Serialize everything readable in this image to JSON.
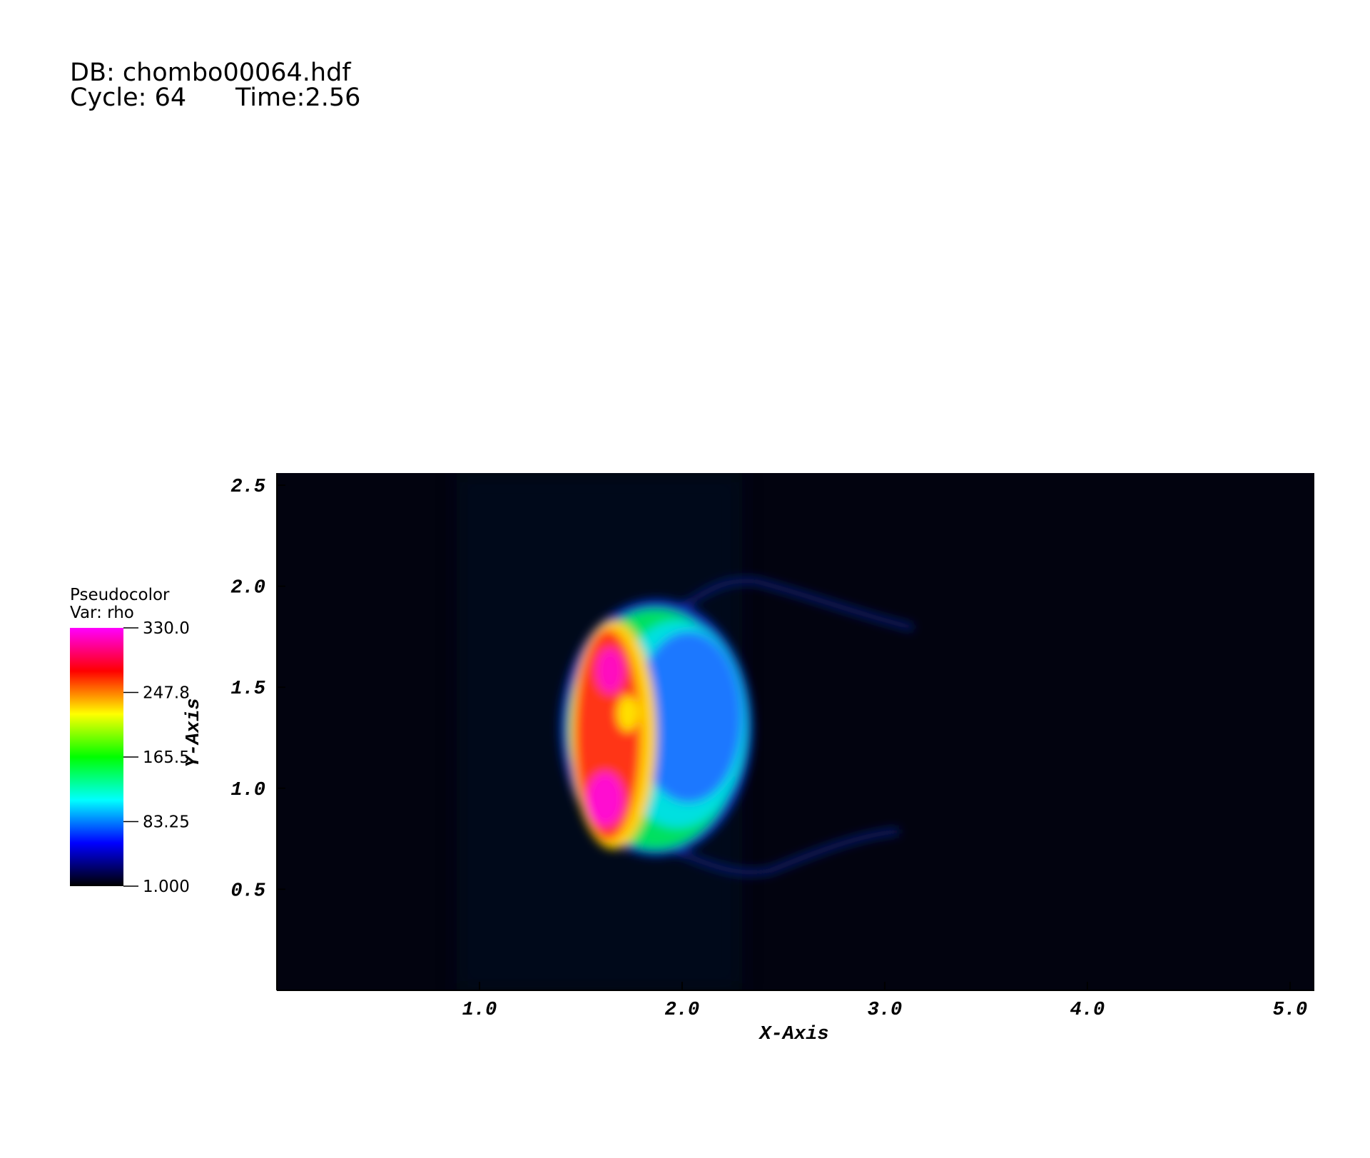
{
  "chart_data": {
    "type": "pseudocolor",
    "database": "DB: chombo00064.hdf",
    "cycle": "Cycle: 64",
    "time": "Time:2.56",
    "xlabel": "X-Axis",
    "ylabel": "Y-Axis",
    "xlim": [
      0,
      5.12
    ],
    "ylim": [
      0,
      2.56
    ],
    "xticks": [
      {
        "value": 1,
        "label": "1.0"
      },
      {
        "value": 2,
        "label": "2.0"
      },
      {
        "value": 3,
        "label": "3.0"
      },
      {
        "value": 4,
        "label": "4.0"
      },
      {
        "value": 5,
        "label": "5.0"
      }
    ],
    "yticks": [
      0.5,
      {
        "value": 1,
        "label": "1.0"
      },
      1.5,
      {
        "value": 2,
        "label": "2.0"
      },
      2.5
    ],
    "colorbar": {
      "title": "Pseudocolor",
      "variable": "Var: rho",
      "range": [
        1,
        330
      ],
      "ticks": [
        {
          "value": 330,
          "label": "330.0"
        },
        247.8,
        165.5,
        83.25,
        {
          "value": 1,
          "label": "1.000"
        }
      ],
      "colors": [
        "#000000",
        "#0000ff",
        "#00ffff",
        "#00ff00",
        "#ffff00",
        "#ff0000",
        "#ff00ff"
      ]
    }
  }
}
